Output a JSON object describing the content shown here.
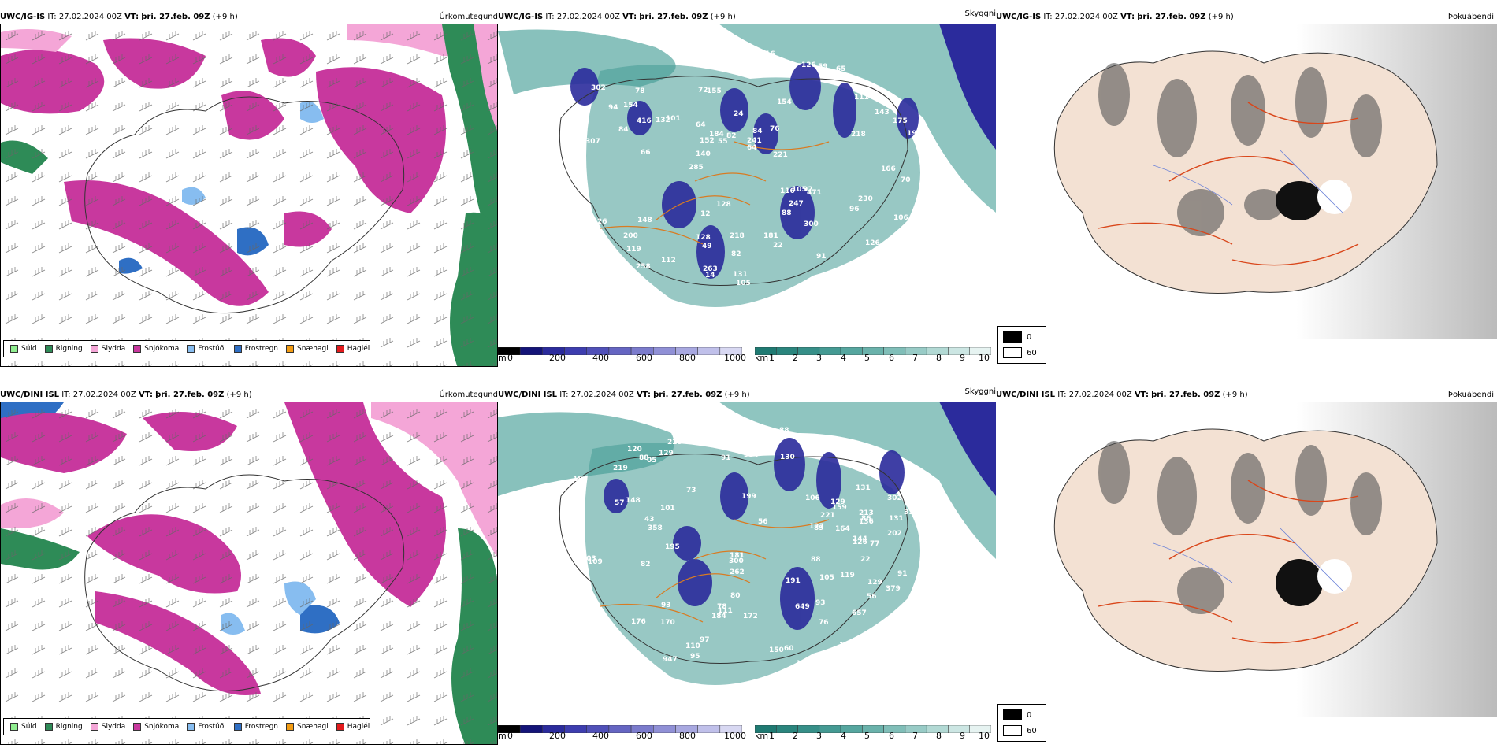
{
  "rows": [
    {
      "model": "UWC/IG-IS",
      "it_label": "IT:",
      "it_value": "27.02.2024 00Z",
      "vt_label": "VT:",
      "vt_value": "þri. 27.feb. 09Z",
      "lead": "(+9 h)"
    },
    {
      "model": "UWC/DINI ISL",
      "it_label": "IT:",
      "it_value": "27.02.2024 00Z",
      "vt_label": "VT:",
      "vt_value": "þri. 27.feb. 09Z",
      "lead": "(+9 h)"
    }
  ],
  "panel_titles": {
    "precip_type": "Úrkomutegund",
    "clouds": "Skyggni",
    "fog": "Þokuábendi"
  },
  "precip_legend": [
    {
      "label": "Súld",
      "color": "#90ee90"
    },
    {
      "label": "Rigning",
      "color": "#2e8b57"
    },
    {
      "label": "Slydda",
      "color": "#f4a6d7"
    },
    {
      "label": "Snjókoma",
      "color": "#c8389e"
    },
    {
      "label": "Frostúði",
      "color": "#87bdf0"
    },
    {
      "label": "Frostregn",
      "color": "#2f6fc4"
    },
    {
      "label": "Snæhagl",
      "color": "#f39c12"
    },
    {
      "label": "Haglél",
      "color": "#e31a1c"
    }
  ],
  "colorbar_m": {
    "unit": "m",
    "ticks": [
      "0",
      "200",
      "400",
      "600",
      "800",
      "1000"
    ],
    "colors": [
      "#000000",
      "#141478",
      "#2b2b9c",
      "#3d3daf",
      "#5050b8",
      "#6565c2",
      "#7b7bcc",
      "#9090d6",
      "#a8a8e0",
      "#c0c0ea",
      "#d8d8f2"
    ]
  },
  "colorbar_km": {
    "unit": "km",
    "ticks": [
      "1",
      "2",
      "3",
      "4",
      "5",
      "6",
      "7",
      "8",
      "9",
      "10"
    ],
    "colors": [
      "#1f7a72",
      "#2a857d",
      "#368f88",
      "#449a93",
      "#56a69f",
      "#6ab2ab",
      "#80beb8",
      "#98cbc6",
      "#b2d9d4",
      "#cce6e3",
      "#e6f3f1"
    ]
  },
  "fog_legend": [
    {
      "label": "0",
      "color": "#000000"
    },
    {
      "label": "60",
      "color": "#ffffff"
    }
  ],
  "cloud_numbers_top": [
    "307",
    "285",
    "154",
    "72",
    "24",
    "26",
    "101",
    "119",
    "155",
    "84",
    "471",
    "302",
    "75",
    "199",
    "116",
    "143",
    "140",
    "128",
    "152",
    "78",
    "126",
    "148",
    "144",
    "126",
    "92",
    "105",
    "132",
    "84",
    "88",
    "258",
    "175",
    "241",
    "49",
    "64",
    "75",
    "111",
    "247",
    "22",
    "200",
    "218",
    "65",
    "67",
    "66",
    "256",
    "154",
    "59",
    "116",
    "137",
    "184",
    "106",
    "12",
    "112",
    "105",
    "416",
    "94",
    "70",
    "64",
    "82",
    "82",
    "737",
    "221",
    "230",
    "263",
    "218",
    "128",
    "91",
    "131",
    "181",
    "206",
    "166",
    "76",
    "300",
    "55",
    "96",
    "61",
    "14",
    "12"
  ],
  "cloud_numbers_bottom": [
    "657",
    "302",
    "178",
    "199",
    "223",
    "213",
    "170",
    "148",
    "131",
    "184",
    "144",
    "95",
    "208",
    "219",
    "120",
    "129",
    "111",
    "86",
    "103",
    "109",
    "150",
    "127",
    "110",
    "184",
    "95",
    "130",
    "106",
    "82",
    "76",
    "947",
    "300",
    "129",
    "148",
    "89",
    "91",
    "195",
    "119",
    "164",
    "304",
    "358",
    "379",
    "105",
    "70",
    "88",
    "101",
    "159",
    "176",
    "262",
    "302",
    "315",
    "649",
    "88",
    "120",
    "101",
    "75",
    "93",
    "172",
    "88",
    "181",
    "129",
    "57",
    "131",
    "126",
    "93",
    "191",
    "78",
    "221",
    "202",
    "22",
    "56",
    "60",
    "91",
    "77",
    "97",
    "136",
    "104",
    "80",
    "73",
    "56",
    "43",
    "05"
  ]
}
